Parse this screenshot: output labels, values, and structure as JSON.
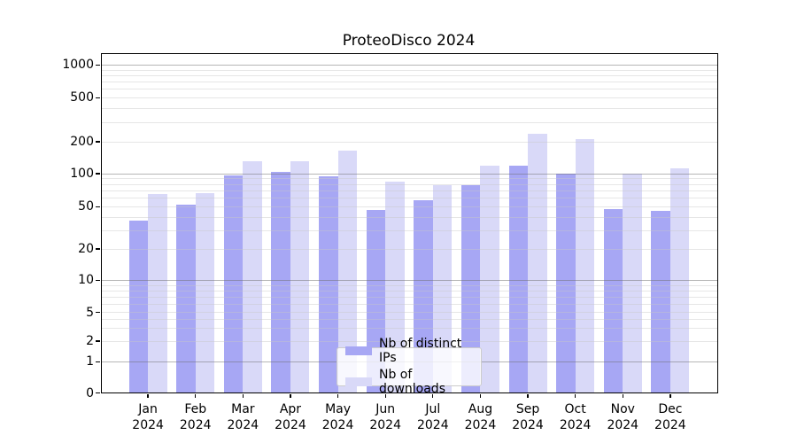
{
  "title": "ProteoDisco 2024",
  "colors": {
    "ips_bar": "#a7a7f4",
    "downloads_bar": "#d9d9f8",
    "axis": "#000000",
    "major_grid": "#b6b6b6",
    "minor_grid": "#e6e6e6",
    "legend_border": "#cccccc"
  },
  "legend": {
    "items": [
      {
        "label": "Nb of distinct IPs",
        "color_key": "ips_bar"
      },
      {
        "label": "Nb of downloads",
        "color_key": "downloads_bar"
      }
    ]
  },
  "y_axis": {
    "tick_labels": [
      "0",
      "1",
      "2",
      "5",
      "10",
      "20",
      "50",
      "100",
      "200",
      "500",
      "1000"
    ]
  },
  "x_axis": {
    "months": [
      "Jan",
      "Feb",
      "Mar",
      "Apr",
      "May",
      "Jun",
      "Jul",
      "Aug",
      "Sep",
      "Oct",
      "Nov",
      "Dec"
    ],
    "year": "2024"
  },
  "chart_data": {
    "type": "bar",
    "title": "ProteoDisco 2024",
    "categories": [
      "Jan 2024",
      "Feb 2024",
      "Mar 2024",
      "Apr 2024",
      "May 2024",
      "Jun 2024",
      "Jul 2024",
      "Aug 2024",
      "Sep 2024",
      "Oct 2024",
      "Nov 2024",
      "Dec 2024"
    ],
    "series": [
      {
        "name": "Nb of distinct IPs",
        "values": [
          37,
          52,
          96,
          103,
          94,
          47,
          57,
          78,
          118,
          100,
          48,
          46
        ]
      },
      {
        "name": "Nb of downloads",
        "values": [
          65,
          67,
          131,
          132,
          165,
          84,
          78,
          120,
          238,
          210,
          100,
          113
        ]
      }
    ],
    "xlabel": "",
    "ylabel": "",
    "yscale": "symlog",
    "y_ticks": [
      0,
      1,
      2,
      5,
      10,
      20,
      50,
      100,
      200,
      500,
      1000
    ],
    "ylim": [
      0,
      1320
    ],
    "grid": true,
    "grid_on_top_of_bars": true,
    "legend_position": "lower center"
  }
}
